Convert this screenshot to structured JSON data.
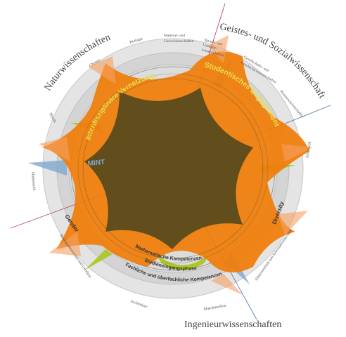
{
  "faculties": {
    "natur": "Naturwissenschaften",
    "geistes": "Geistes- und Sozialwissenschaften",
    "ingenieur": "Ingenieurwissenschaften"
  },
  "subjects": {
    "biologie": "Biologie",
    "material_1": "Material- und",
    "material_2": "Geowissenschaften",
    "chemie": "Chemie",
    "physik": "Physik",
    "mathematik": "Mathematik",
    "bau": "Bauingenieurwesen und Geodäsie",
    "architektur": "Architektur",
    "maschinenbau": "Maschinenbau",
    "elektro": "Elektrotechnik und Informationstechnik",
    "informatik": "Informatik",
    "human": "Humanwissenschaften",
    "gesellschaft_1": "Gesellschafts- und",
    "gesellschaft_2": "Geschichtswissenschaften",
    "sprach_1": "Sprach- und",
    "sprach_2": "Literatur-",
    "sprach_3": "wissenschaften"
  },
  "themes": {
    "interdisziplinaer": "Interdisziplinäre Vernetzung",
    "studentisch": "Studentisches Engagement",
    "mint": "MINT",
    "gender": "Gender",
    "diversity": "Diversity",
    "mathematische": "Mathematische Kompetenzen",
    "studieneingang": "Studieneingangsphase",
    "fachliche": "Fachliche und überfachliche Kompetenzen"
  },
  "colors": {
    "orange": "#F07D0A",
    "olive": "#5A4A1E",
    "green": "#A8C414",
    "blue": "#7FA8D0",
    "ring": "#D0D0D0",
    "text": "#444444"
  }
}
